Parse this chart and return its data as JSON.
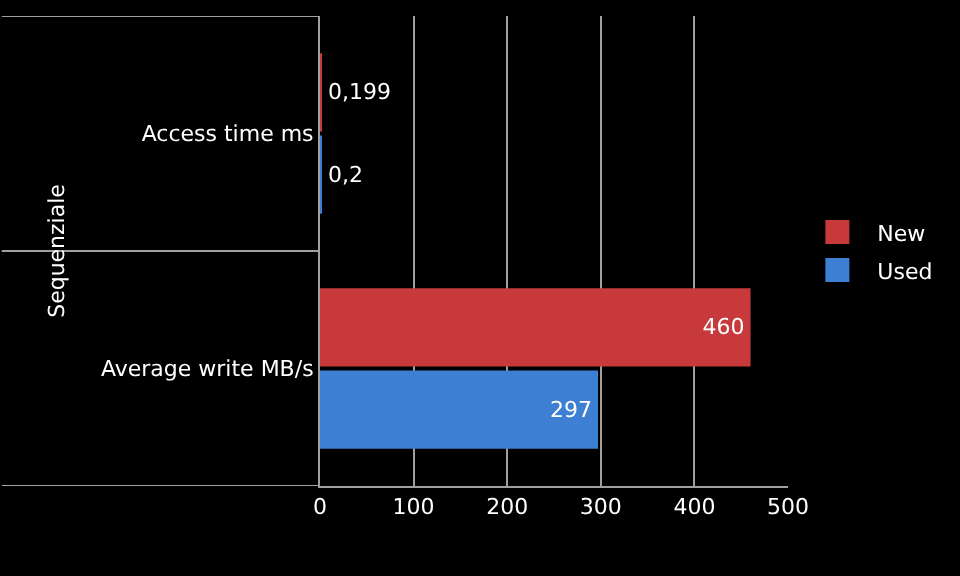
{
  "chart_data": {
    "type": "bar",
    "orientation": "horizontal",
    "ylabel": "Sequenziale",
    "categories": [
      "Access time ms",
      "Average write MB/s"
    ],
    "series": [
      {
        "name": "New",
        "color": "#c8393b",
        "values": [
          0.199,
          460
        ],
        "value_labels": [
          "0,199",
          "460"
        ]
      },
      {
        "name": "Used",
        "color": "#3d7fd2",
        "values": [
          0.2,
          297
        ],
        "value_labels": [
          "0,2",
          "297"
        ]
      }
    ],
    "xlim": [
      0,
      500
    ],
    "xticks": [
      0,
      100,
      200,
      300,
      400,
      500
    ],
    "grid": "x",
    "legend": "right"
  }
}
